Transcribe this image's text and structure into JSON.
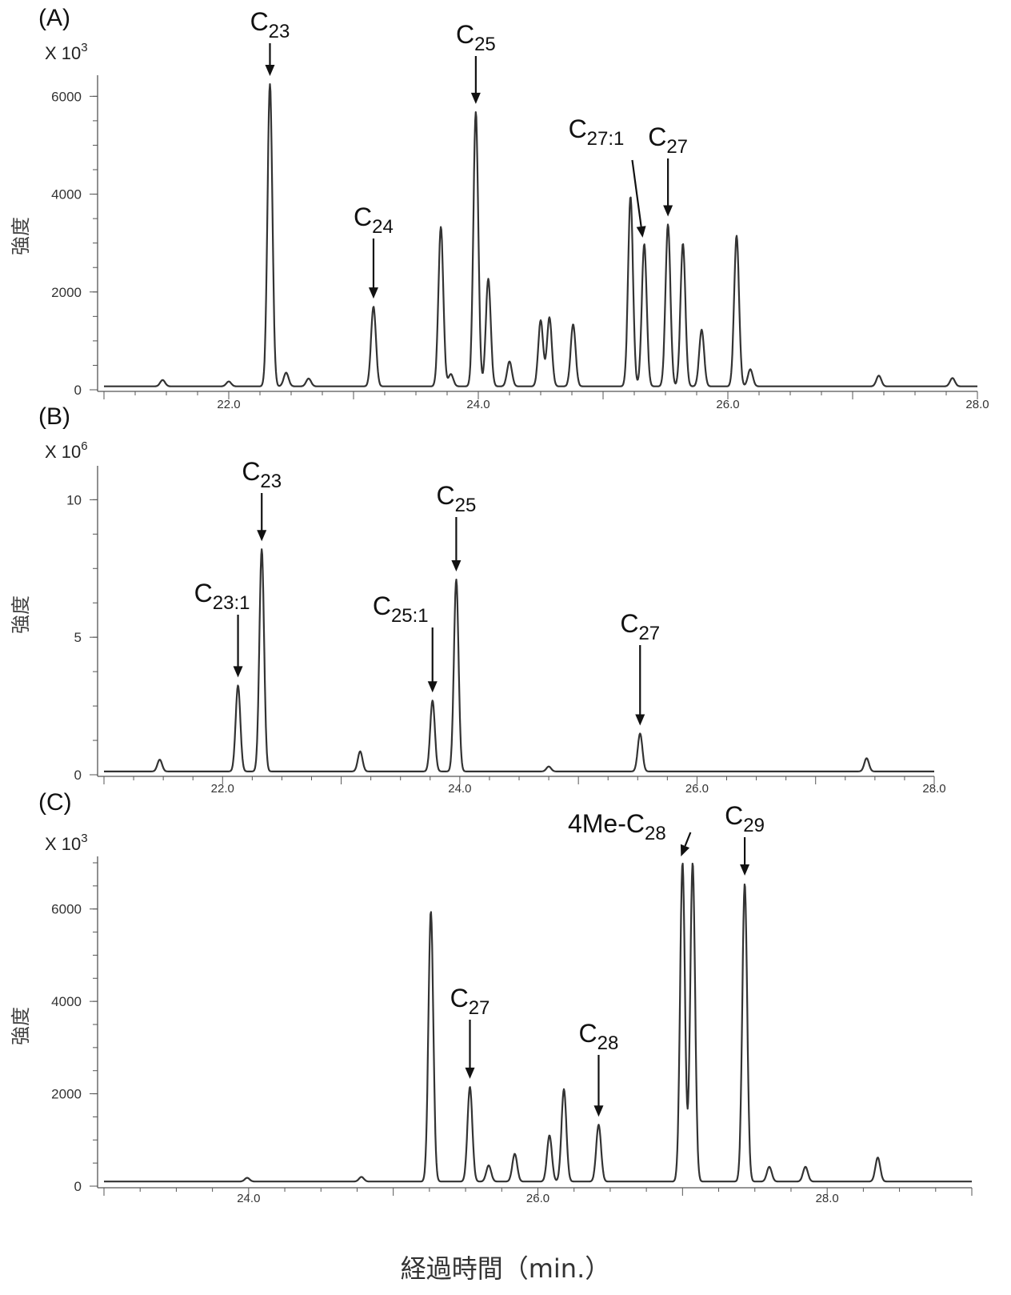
{
  "x_axis_label": "経過時間（min.）",
  "chart_data": [
    {
      "type": "line",
      "panel_label": "(A)",
      "y_multiplier": "X 10",
      "y_multiplier_exp": "3",
      "ylabel": "強度",
      "xlim": [
        21.0,
        28.0
      ],
      "ylim": [
        0,
        6300
      ],
      "y_ticks": [
        0,
        2000,
        4000,
        6000
      ],
      "y_tick_labels": [
        "0",
        "2000",
        "4000",
        "6000"
      ],
      "x_ticks": [
        22.0,
        24.0,
        26.0,
        28.0
      ],
      "x_tick_labels": [
        "22.0",
        "24.0",
        "26.0",
        "28.0"
      ],
      "baseline": 70,
      "peaks": [
        {
          "x": 21.47,
          "y": 200
        },
        {
          "x": 22.0,
          "y": 170
        },
        {
          "x": 22.33,
          "y": 6250
        },
        {
          "x": 22.46,
          "y": 350
        },
        {
          "x": 22.64,
          "y": 230
        },
        {
          "x": 23.16,
          "y": 1700
        },
        {
          "x": 23.7,
          "y": 3330
        },
        {
          "x": 23.78,
          "y": 320
        },
        {
          "x": 23.98,
          "y": 5680
        },
        {
          "x": 24.08,
          "y": 2270
        },
        {
          "x": 24.25,
          "y": 580
        },
        {
          "x": 24.5,
          "y": 1420
        },
        {
          "x": 24.57,
          "y": 1480
        },
        {
          "x": 24.76,
          "y": 1340
        },
        {
          "x": 25.22,
          "y": 3950
        },
        {
          "x": 25.33,
          "y": 2980
        },
        {
          "x": 25.52,
          "y": 3380
        },
        {
          "x": 25.64,
          "y": 2990
        },
        {
          "x": 25.79,
          "y": 1230
        },
        {
          "x": 26.07,
          "y": 3150
        },
        {
          "x": 26.18,
          "y": 420
        },
        {
          "x": 27.21,
          "y": 290
        },
        {
          "x": 27.8,
          "y": 240
        }
      ],
      "annotations": [
        {
          "text": "C",
          "sub": "23",
          "peak_x": 22.33,
          "arrow": "down"
        },
        {
          "text": "C",
          "sub": "24",
          "peak_x": 23.16,
          "arrow": "down"
        },
        {
          "text": "C",
          "sub": "25",
          "peak_x": 23.98,
          "arrow": "down"
        },
        {
          "text": "C",
          "sub": "27:1",
          "peak_x": 25.33,
          "arrow": "diagonal"
        },
        {
          "text": "C",
          "sub": "27",
          "peak_x": 25.52,
          "arrow": "down"
        }
      ]
    },
    {
      "type": "line",
      "panel_label": "(B)",
      "y_multiplier": "X 10",
      "y_multiplier_exp": "6",
      "ylabel": "強度",
      "xlim": [
        21.0,
        28.0
      ],
      "ylim": [
        0,
        11
      ],
      "y_ticks": [
        0,
        5,
        10
      ],
      "y_tick_labels": [
        "0",
        "5",
        "10"
      ],
      "x_ticks": [
        22.0,
        24.0,
        26.0,
        28.0
      ],
      "x_tick_labels": [
        "22.0",
        "24.0",
        "26.0",
        "28.0"
      ],
      "baseline": 0.12,
      "peaks": [
        {
          "x": 21.47,
          "y": 0.55
        },
        {
          "x": 22.13,
          "y": 3.25
        },
        {
          "x": 22.33,
          "y": 8.2
        },
        {
          "x": 23.16,
          "y": 0.85
        },
        {
          "x": 23.77,
          "y": 2.7
        },
        {
          "x": 23.97,
          "y": 7.1
        },
        {
          "x": 24.75,
          "y": 0.3
        },
        {
          "x": 25.52,
          "y": 1.5
        },
        {
          "x": 27.43,
          "y": 0.6
        }
      ],
      "annotations": [
        {
          "text": "C",
          "sub": "23:1",
          "peak_x": 22.13,
          "arrow": "down"
        },
        {
          "text": "C",
          "sub": "23",
          "peak_x": 22.33,
          "arrow": "down"
        },
        {
          "text": "C",
          "sub": "25:1",
          "peak_x": 23.77,
          "arrow": "down"
        },
        {
          "text": "C",
          "sub": "25",
          "peak_x": 23.97,
          "arrow": "down"
        },
        {
          "text": "C",
          "sub": "27",
          "peak_x": 25.52,
          "arrow": "down"
        }
      ]
    },
    {
      "type": "line",
      "panel_label": "(C)",
      "y_multiplier": "X 10",
      "y_multiplier_exp": "3",
      "ylabel": "強度",
      "xlim": [
        23.0,
        29.0
      ],
      "ylim": [
        0,
        7000
      ],
      "y_ticks": [
        0,
        2000,
        4000,
        6000
      ],
      "y_tick_labels": [
        "0",
        "2000",
        "4000",
        "6000"
      ],
      "x_ticks": [
        24.0,
        26.0,
        28.0
      ],
      "x_tick_labels": [
        "24.0",
        "26.0",
        "28.0"
      ],
      "baseline": 100,
      "peaks": [
        {
          "x": 23.99,
          "y": 180
        },
        {
          "x": 24.78,
          "y": 200
        },
        {
          "x": 25.26,
          "y": 5950
        },
        {
          "x": 25.53,
          "y": 2150
        },
        {
          "x": 25.66,
          "y": 450
        },
        {
          "x": 25.84,
          "y": 700
        },
        {
          "x": 26.08,
          "y": 1100
        },
        {
          "x": 26.18,
          "y": 2100
        },
        {
          "x": 26.42,
          "y": 1330
        },
        {
          "x": 27.0,
          "y": 7000
        },
        {
          "x": 27.07,
          "y": 7000
        },
        {
          "x": 27.43,
          "y": 6550
        },
        {
          "x": 27.6,
          "y": 420
        },
        {
          "x": 27.85,
          "y": 420
        },
        {
          "x": 28.35,
          "y": 620
        }
      ],
      "annotations": [
        {
          "text": "C",
          "sub": "27",
          "peak_x": 25.53,
          "arrow": "down"
        },
        {
          "text": "C",
          "sub": "28",
          "peak_x": 26.42,
          "arrow": "down"
        },
        {
          "text": "4Me-C",
          "sub": "28",
          "peak_x": 27.0,
          "arrow": "diagonal"
        },
        {
          "text": "C",
          "sub": "29",
          "peak_x": 27.43,
          "arrow": "down"
        }
      ]
    }
  ]
}
